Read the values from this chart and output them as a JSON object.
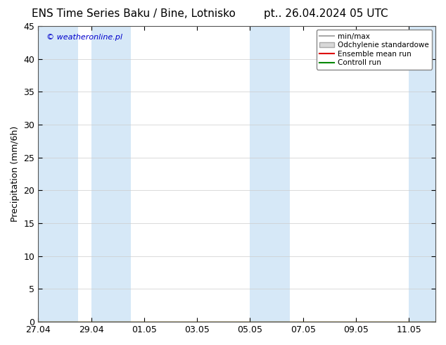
{
  "title_left": "ENS Time Series Baku / Bine, Lotnisko",
  "title_right": "pt.. 26.04.2024 05 UTC",
  "ylabel": "Precipitation (mm/6h)",
  "watermark": "© weatheronline.pl",
  "watermark_color": "#0000cc",
  "ylim": [
    0,
    45
  ],
  "yticks": [
    0,
    5,
    10,
    15,
    20,
    25,
    30,
    35,
    40,
    45
  ],
  "background_color": "#ffffff",
  "band_color": "#d6e8f7",
  "legend_labels": [
    "min/max",
    "Odchylenie standardowe",
    "Ensemble mean run",
    "Controll run"
  ],
  "legend_line_colors": [
    "#aaaaaa",
    "#cccccc",
    "#dd0000",
    "#008800"
  ],
  "title_fontsize": 11,
  "tick_label_fontsize": 9,
  "ylabel_fontsize": 9,
  "x_dates": [
    "27.04",
    "29.04",
    "01.05",
    "03.05",
    "05.05",
    "07.05",
    "09.05",
    "11.05"
  ],
  "x_positions": [
    0,
    2,
    4,
    6,
    8,
    10,
    12,
    14
  ],
  "xlim": [
    0,
    15
  ],
  "band_specs": [
    [
      0.0,
      1.5
    ],
    [
      2.0,
      3.5
    ],
    [
      8.0,
      9.5
    ],
    [
      14.0,
      15.0
    ]
  ]
}
